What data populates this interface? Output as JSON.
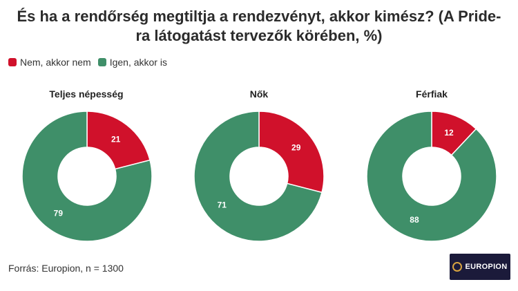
{
  "title": "És ha a rendőrség megtiltja a rendezvényt, akkor kimész? (A Pride-ra látogatást tervezők körében, %)",
  "legend": [
    {
      "label": "Nem, akkor nem",
      "color": "#d0112b"
    },
    {
      "label": "Igen, akkor is",
      "color": "#3f8f69"
    }
  ],
  "source": "Forrás: Europion, n = 1300",
  "logo": {
    "text": "EUROPION"
  },
  "chart_data": [
    {
      "type": "pie",
      "donut": true,
      "title": "Teljes népesség",
      "categories": [
        "Nem, akkor nem",
        "Igen, akkor is"
      ],
      "values": [
        21,
        79
      ],
      "colors": [
        "#d0112b",
        "#3f8f69"
      ]
    },
    {
      "type": "pie",
      "donut": true,
      "title": "Nők",
      "categories": [
        "Nem, akkor nem",
        "Igen, akkor is"
      ],
      "values": [
        29,
        71
      ],
      "colors": [
        "#d0112b",
        "#3f8f69"
      ]
    },
    {
      "type": "pie",
      "donut": true,
      "title": "Férfiak",
      "categories": [
        "Nem, akkor nem",
        "Igen, akkor is"
      ],
      "values": [
        12,
        88
      ],
      "colors": [
        "#d0112b",
        "#3f8f69"
      ]
    }
  ]
}
